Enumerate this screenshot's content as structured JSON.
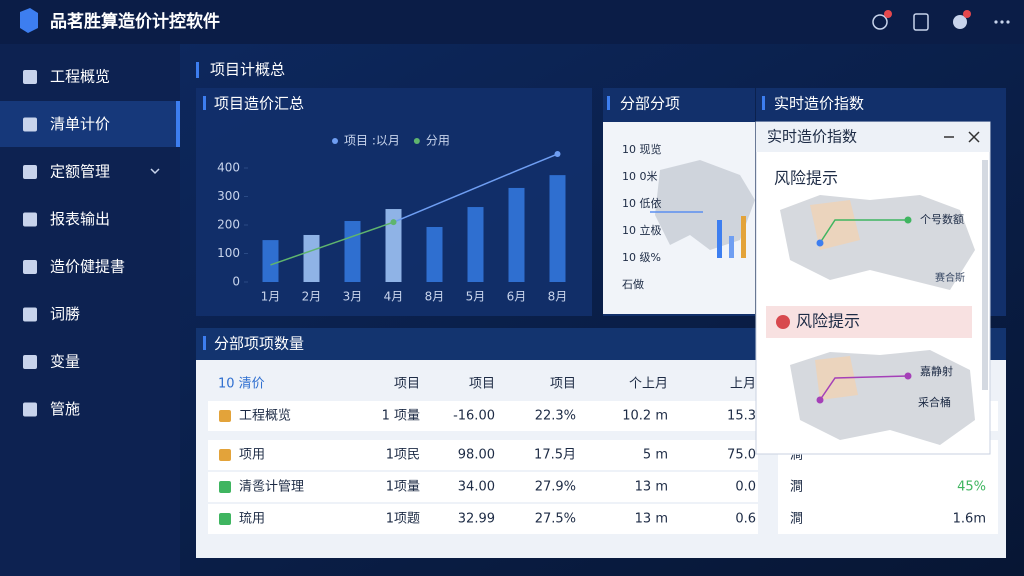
{
  "header": {
    "title": "品茗胜算造价计控软件"
  },
  "sidebar": {
    "items": [
      "工程概览",
      "清单计价",
      "定额管理",
      "报表输出",
      "造价健提書",
      "词勝",
      "变量",
      "管施"
    ]
  },
  "section_title": "项目计概总",
  "chart_data": {
    "type": "bar",
    "title": "项目造价汇总",
    "categories": [
      "1月",
      "2月",
      "3月",
      "4月",
      "8月",
      "5月",
      "6月",
      "8月"
    ],
    "values": [
      147,
      165,
      214,
      256,
      193,
      263,
      330,
      375
    ],
    "colors": [
      "#2f6fd0",
      "#8fb3e6",
      "#2f6fd0",
      "#8fb3e6",
      "#2f6fd0",
      "#2f6fd0",
      "#2f6fd0",
      "#2f6fd0"
    ],
    "ylim": [
      0,
      450
    ],
    "yticks": [
      0,
      100,
      200,
      300,
      400
    ],
    "grid": false,
    "series": [
      {
        "name": "项目 :以月",
        "color": "#6f9ef2",
        "values": [
          null,
          null,
          null,
          210,
          270,
          330,
          390,
          449
        ]
      },
      {
        "name": "分用",
        "color": "#5fb56e",
        "values": [
          60,
          110,
          160,
          210,
          null,
          null,
          null,
          null
        ]
      }
    ]
  },
  "panel_fenbu": {
    "title": "分部分项",
    "items": [
      "10 现览",
      "10 0米",
      "10 低依",
      "10 立极",
      "10 级%",
      "石做"
    ]
  },
  "panel_index": {
    "title": "实时造价指数"
  },
  "popup": {
    "title": "实时造价指数",
    "risk1": {
      "title": "风险提示",
      "labels": [
        "个号数额",
        "赛合斯"
      ]
    },
    "risk2": {
      "title": "风险提示",
      "labels": [
        "嘉静射",
        "采合桶"
      ]
    }
  },
  "table": {
    "title": "分部项项数量",
    "header": [
      "10 清价",
      "项目",
      "项目",
      "项目",
      "个上月",
      "上月"
    ],
    "rows": [
      [
        "工程概览",
        "1 项量",
        "-16.00",
        "22.3%",
        "10.2 m",
        "15.3"
      ],
      [
        "项用",
        "1项民",
        "98.00",
        "17.5月",
        "5 m",
        "75.0",
        "澗"
      ],
      [
        "清卺计管理",
        "1项量",
        "34.00",
        "27.9%",
        "13 m",
        "0.0",
        "澗",
        "45%"
      ],
      [
        "琉用",
        "1项题",
        "32.99",
        "27.5%",
        "13 m",
        "0.6",
        "澗",
        "1.6m"
      ]
    ]
  }
}
